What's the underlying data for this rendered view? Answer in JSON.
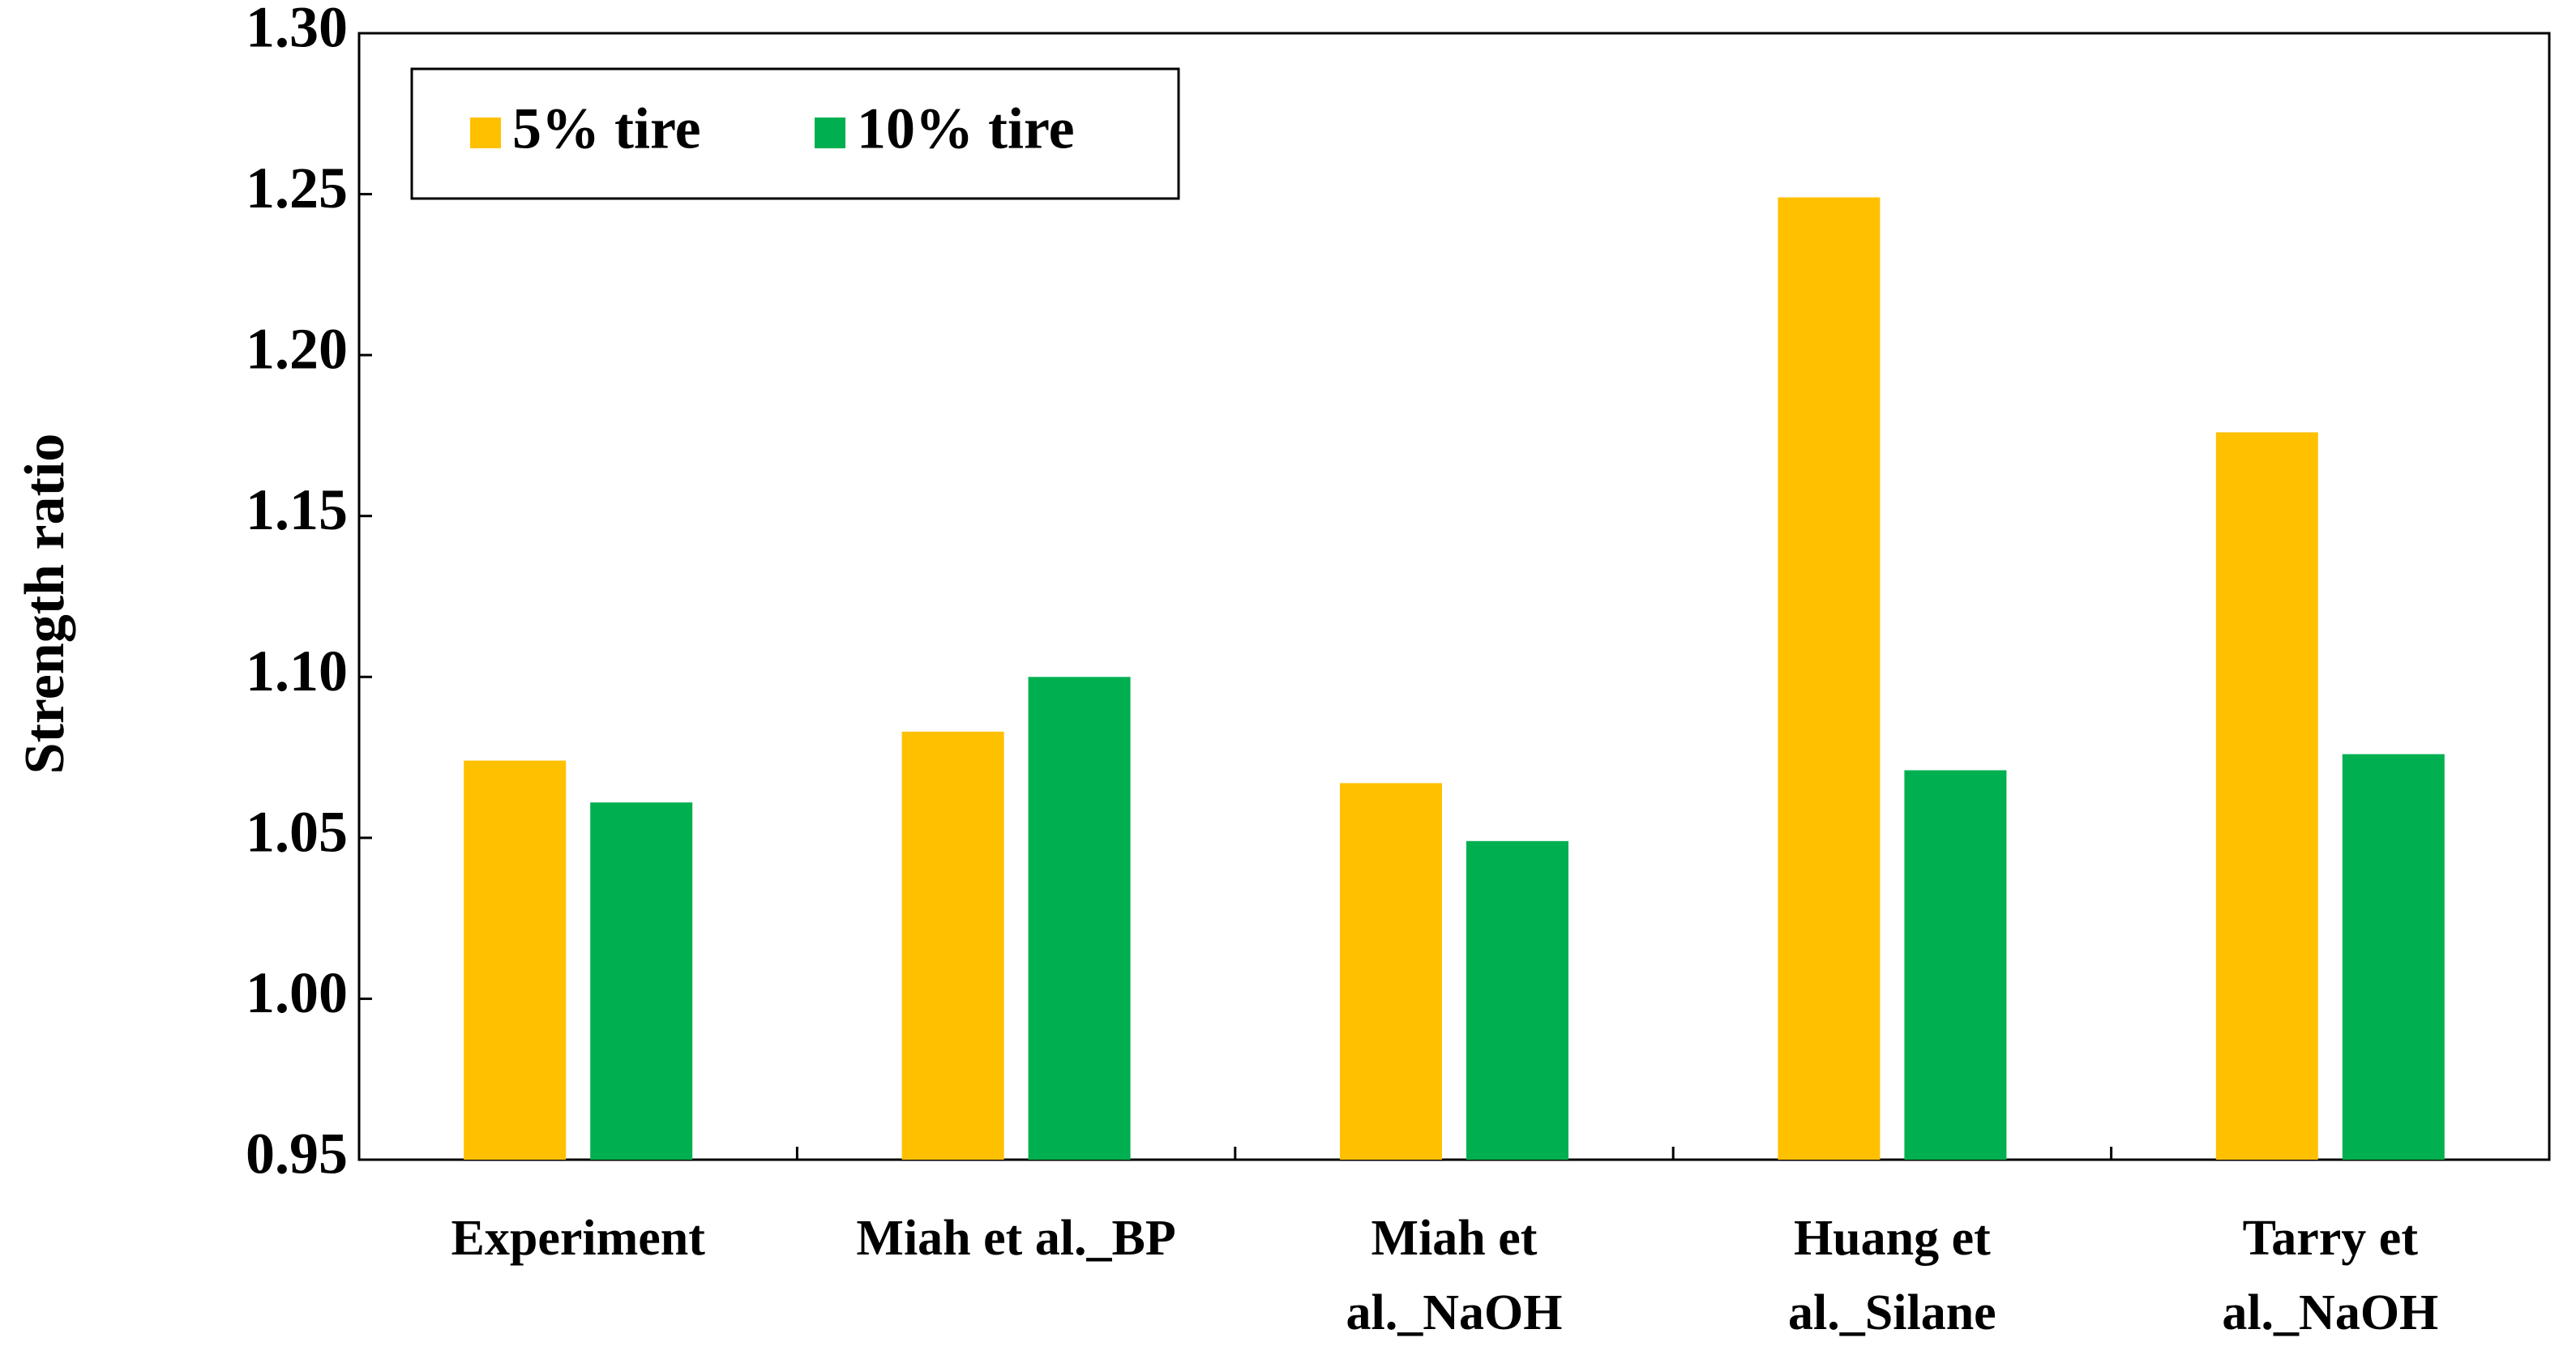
{
  "chart_data": {
    "type": "bar",
    "y_label": "Strength ratio",
    "categories": [
      "Experiment",
      "Miah et al._BP",
      "Miah et\nal._NaOH",
      "Huang et\nal._Silane",
      "Tarry et\nal._NaOH"
    ],
    "series": [
      {
        "name": "5% tire",
        "color": "#ffc000",
        "values": [
          1.074,
          1.083,
          1.067,
          1.249,
          1.176
        ]
      },
      {
        "name": "10% tire",
        "color": "#00b050",
        "values": [
          1.061,
          1.1,
          1.049,
          1.071,
          1.076
        ]
      }
    ],
    "ylim": [
      0.95,
      1.3
    ],
    "yticks": [
      0.95,
      {
        "value": 1.0,
        "label": "1.00"
      },
      1.05,
      {
        "value": 1.1,
        "label": "1.10"
      },
      1.15,
      {
        "value": 1.2,
        "label": "1.20"
      },
      1.25,
      {
        "value": 1.3,
        "label": "1.30"
      }
    ],
    "grid": false,
    "legend": "top-left"
  }
}
